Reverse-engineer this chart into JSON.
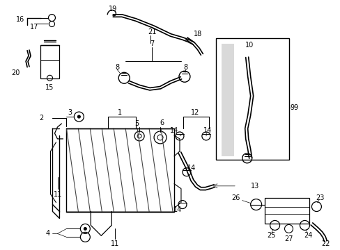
{
  "bg_color": "#ffffff",
  "line_color": "#000000",
  "gray_color": "#808080",
  "fig_width": 4.89,
  "fig_height": 3.6,
  "dpi": 100,
  "xlim": [
    0,
    489
  ],
  "ylim": [
    0,
    360
  ]
}
